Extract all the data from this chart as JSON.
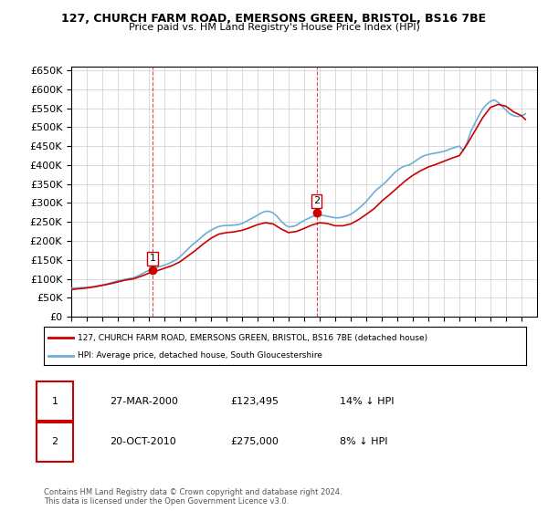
{
  "title": "127, CHURCH FARM ROAD, EMERSONS GREEN, BRISTOL, BS16 7BE",
  "subtitle": "Price paid vs. HM Land Registry's House Price Index (HPI)",
  "ylabel_max": 650000,
  "ylabel_min": 0,
  "ylabel_step": 50000,
  "background_color": "#ffffff",
  "grid_color": "#cccccc",
  "hpi_color": "#6baed6",
  "price_color": "#cc0000",
  "annotation_color": "#cc0000",
  "legend_label_price": "127, CHURCH FARM ROAD, EMERSONS GREEN, BRISTOL, BS16 7BE (detached house)",
  "legend_label_hpi": "HPI: Average price, detached house, South Gloucestershire",
  "transactions": [
    {
      "date_num": 2000.23,
      "price": 123495,
      "label": "1"
    },
    {
      "date_num": 2010.8,
      "price": 275000,
      "label": "2"
    }
  ],
  "annotation1_box_label": "1",
  "annotation1_date": "27-MAR-2000",
  "annotation1_price": "£123,495",
  "annotation1_pct": "14% ↓ HPI",
  "annotation2_box_label": "2",
  "annotation2_date": "20-OCT-2010",
  "annotation2_price": "£275,000",
  "annotation2_pct": "8% ↓ HPI",
  "footnote": "Contains HM Land Registry data © Crown copyright and database right 2024.\nThis data is licensed under the Open Government Licence v3.0.",
  "hpi_data": {
    "years": [
      1995.0,
      1995.25,
      1995.5,
      1995.75,
      1996.0,
      1996.25,
      1996.5,
      1996.75,
      1997.0,
      1997.25,
      1997.5,
      1997.75,
      1998.0,
      1998.25,
      1998.5,
      1998.75,
      1999.0,
      1999.25,
      1999.5,
      1999.75,
      2000.0,
      2000.25,
      2000.5,
      2000.75,
      2001.0,
      2001.25,
      2001.5,
      2001.75,
      2002.0,
      2002.25,
      2002.5,
      2002.75,
      2003.0,
      2003.25,
      2003.5,
      2003.75,
      2004.0,
      2004.25,
      2004.5,
      2004.75,
      2005.0,
      2005.25,
      2005.5,
      2005.75,
      2006.0,
      2006.25,
      2006.5,
      2006.75,
      2007.0,
      2007.25,
      2007.5,
      2007.75,
      2008.0,
      2008.25,
      2008.5,
      2008.75,
      2009.0,
      2009.25,
      2009.5,
      2009.75,
      2010.0,
      2010.25,
      2010.5,
      2010.75,
      2011.0,
      2011.25,
      2011.5,
      2011.75,
      2012.0,
      2012.25,
      2012.5,
      2012.75,
      2013.0,
      2013.25,
      2013.5,
      2013.75,
      2014.0,
      2014.25,
      2014.5,
      2014.75,
      2015.0,
      2015.25,
      2015.5,
      2015.75,
      2016.0,
      2016.25,
      2016.5,
      2016.75,
      2017.0,
      2017.25,
      2017.5,
      2017.75,
      2018.0,
      2018.25,
      2018.5,
      2018.75,
      2019.0,
      2019.25,
      2019.5,
      2019.75,
      2020.0,
      2020.25,
      2020.5,
      2020.75,
      2021.0,
      2021.25,
      2021.5,
      2021.75,
      2022.0,
      2022.25,
      2022.5,
      2022.75,
      2023.0,
      2023.25,
      2023.5,
      2023.75,
      2024.0,
      2024.25
    ],
    "values": [
      75000,
      76000,
      76500,
      77000,
      78000,
      79000,
      80000,
      82000,
      84000,
      86000,
      89000,
      92000,
      95000,
      97000,
      99000,
      101000,
      103000,
      107000,
      112000,
      118000,
      122000,
      127000,
      130000,
      133000,
      136000,
      140000,
      145000,
      150000,
      158000,
      168000,
      178000,
      188000,
      196000,
      205000,
      214000,
      222000,
      228000,
      234000,
      238000,
      240000,
      241000,
      241000,
      242000,
      243000,
      246000,
      251000,
      257000,
      262000,
      268000,
      274000,
      278000,
      278000,
      274000,
      265000,
      253000,
      243000,
      237000,
      238000,
      241000,
      248000,
      254000,
      259000,
      264000,
      267000,
      268000,
      267000,
      265000,
      263000,
      261000,
      261000,
      263000,
      266000,
      270000,
      277000,
      285000,
      294000,
      304000,
      316000,
      328000,
      338000,
      346000,
      355000,
      366000,
      377000,
      386000,
      393000,
      398000,
      400000,
      406000,
      413000,
      420000,
      425000,
      428000,
      430000,
      432000,
      434000,
      436000,
      440000,
      444000,
      447000,
      450000,
      438000,
      460000,
      490000,
      510000,
      530000,
      548000,
      560000,
      568000,
      572000,
      565000,
      555000,
      545000,
      535000,
      530000,
      528000,
      530000,
      535000
    ]
  },
  "price_data": {
    "years": [
      1995.0,
      1995.5,
      1996.0,
      1996.5,
      1997.0,
      1997.5,
      1998.0,
      1998.5,
      1999.0,
      1999.5,
      2000.0,
      2000.5,
      2001.0,
      2001.5,
      2002.0,
      2002.5,
      2003.0,
      2003.5,
      2004.0,
      2004.5,
      2005.0,
      2005.5,
      2006.0,
      2006.5,
      2007.0,
      2007.5,
      2008.0,
      2008.5,
      2009.0,
      2009.5,
      2010.0,
      2010.5,
      2011.0,
      2011.5,
      2012.0,
      2012.5,
      2013.0,
      2013.5,
      2014.0,
      2014.5,
      2015.0,
      2015.5,
      2016.0,
      2016.5,
      2017.0,
      2017.5,
      2018.0,
      2018.5,
      2019.0,
      2019.5,
      2020.0,
      2020.5,
      2021.0,
      2021.5,
      2022.0,
      2022.5,
      2023.0,
      2023.5,
      2024.0,
      2024.25
    ],
    "values": [
      72000,
      74000,
      76000,
      79000,
      83000,
      87000,
      92000,
      97000,
      100000,
      107000,
      115000,
      121000,
      128000,
      135000,
      145000,
      160000,
      175000,
      192000,
      207000,
      218000,
      222000,
      224000,
      228000,
      235000,
      243000,
      248000,
      245000,
      232000,
      222000,
      225000,
      233000,
      242000,
      248000,
      246000,
      240000,
      240000,
      245000,
      256000,
      270000,
      285000,
      305000,
      322000,
      340000,
      358000,
      373000,
      385000,
      395000,
      402000,
      410000,
      418000,
      425000,
      455000,
      490000,
      525000,
      552000,
      560000,
      555000,
      540000,
      530000,
      520000
    ]
  },
  "dashed_line_dates": [
    2000.23,
    2010.8
  ],
  "xmin": 1995,
  "xmax": 2025
}
